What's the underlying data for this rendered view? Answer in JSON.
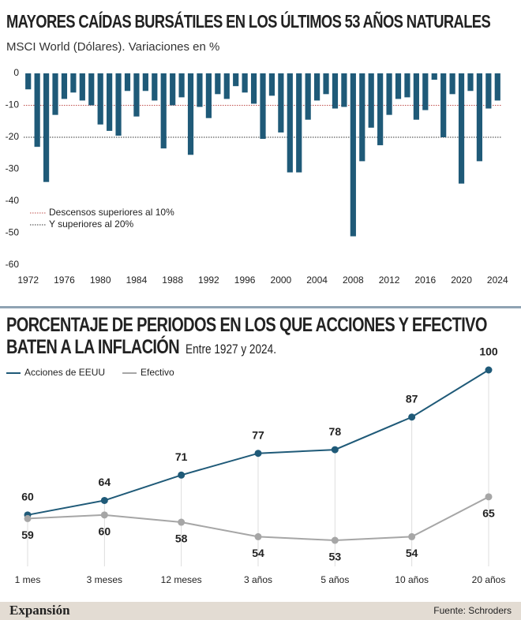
{
  "chart_data": [
    {
      "type": "bar",
      "title": "MAYORES CAÍDAS BURSÁTILES EN LOS ÚLTIMOS 53 AÑOS NATURALES",
      "subtitle": "MSCI World (Dólares). Variaciones en %",
      "categories": [
        "1972",
        null,
        null,
        null,
        "1976",
        null,
        null,
        null,
        "1980",
        null,
        null,
        null,
        "1984",
        null,
        null,
        null,
        "1988",
        null,
        null,
        null,
        "1992",
        null,
        null,
        null,
        "1996",
        null,
        null,
        null,
        "2000",
        null,
        null,
        null,
        "2004",
        null,
        null,
        null,
        "2008",
        null,
        null,
        null,
        "2012",
        null,
        null,
        null,
        "2016",
        null,
        null,
        null,
        "2020",
        null,
        null,
        null,
        "2024"
      ],
      "values": [
        -5,
        -23,
        -34,
        -13,
        -8,
        -6,
        -8.5,
        -10,
        -16,
        -18,
        -19.5,
        -5.5,
        -13.5,
        -5.5,
        -8.5,
        -23.5,
        -10,
        -7.5,
        -25.5,
        -10.5,
        -14,
        -6.5,
        -8,
        -4,
        -6,
        -9.5,
        -20.5,
        -7,
        -18.5,
        -31,
        -31,
        -14.5,
        -8.5,
        -6.5,
        -11,
        -10.5,
        -51,
        -27.5,
        -17,
        -22.5,
        -13,
        -8,
        -7.5,
        -14.5,
        -11.5,
        -2,
        -20,
        -6.5,
        -34.5,
        -5.5,
        -27.5,
        -11,
        -8.5
      ],
      "color": "#1f5a78",
      "ylim": [
        -60,
        0
      ],
      "yticks": [
        0,
        -10,
        -20,
        -30,
        -40,
        -50,
        -60
      ],
      "reference_lines": [
        {
          "value": -10,
          "label": "Descensos superiores al 10%",
          "color": "#c0504d"
        },
        {
          "value": -20,
          "label": "Y superiores al 20%",
          "color": "#333333"
        }
      ]
    },
    {
      "type": "line",
      "title": "PORCENTAJE DE PERIODOS EN LOS QUE ACCIONES Y EFECTIVO BATEN A LA INFLACIÓN",
      "subtitle": "Entre 1927 y 2024.",
      "categories": [
        "1 mes",
        "3 meses",
        "12 meses",
        "3 años",
        "5 años",
        "10 años",
        "20 años"
      ],
      "series": [
        {
          "name": "Acciones de EEUU",
          "color": "#1f5a78",
          "values": [
            60,
            64,
            71,
            77,
            78,
            87,
            100
          ]
        },
        {
          "name": "Efectivo",
          "color": "#a6a6a6",
          "values": [
            59,
            60,
            58,
            54,
            53,
            54,
            65
          ]
        }
      ]
    }
  ],
  "footer": {
    "brand": "Expansión",
    "source": "Fuente: Schroders"
  }
}
